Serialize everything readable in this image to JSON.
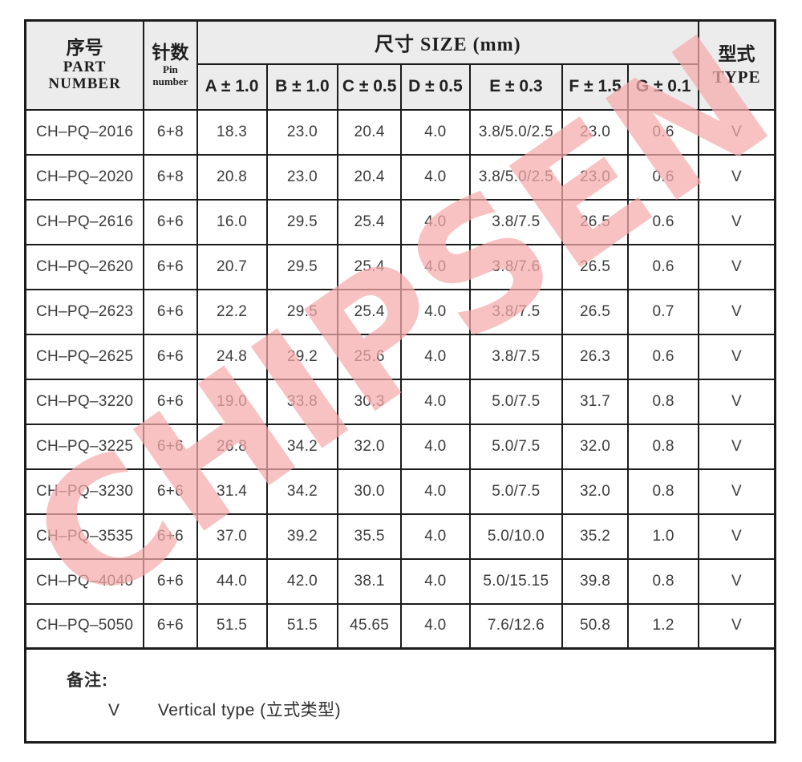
{
  "table": {
    "header": {
      "part_number_zh": "序号",
      "part_number_en1": "PART",
      "part_number_en2": "NUMBER",
      "pin_zh": "针数",
      "pin_en1": "Pin",
      "pin_en2": "number",
      "size_title": "尺寸 SIZE (mm)",
      "dim_cols": [
        "A ± 1.0",
        "B ± 1.0",
        "C ± 0.5",
        "D ± 0.5",
        "E ± 0.3",
        "F ± 1.5",
        "G ± 0.1"
      ],
      "type_zh": "型式",
      "type_en": "TYPE"
    },
    "col_names": [
      "part-number",
      "pin-number",
      "dim-a",
      "dim-b",
      "dim-c",
      "dim-d",
      "dim-e",
      "dim-f",
      "dim-g",
      "type"
    ],
    "rows": [
      [
        "CH–PQ–2016",
        "6+8",
        "18.3",
        "23.0",
        "20.4",
        "4.0",
        "3.8/5.0/2.5",
        "23.0",
        "0.6",
        "V"
      ],
      [
        "CH–PQ–2020",
        "6+8",
        "20.8",
        "23.0",
        "20.4",
        "4.0",
        "3.8/5.0/2.5",
        "23.0",
        "0.6",
        "V"
      ],
      [
        "CH–PQ–2616",
        "6+6",
        "16.0",
        "29.5",
        "25.4",
        "4.0",
        "3.8/7.5",
        "26.5",
        "0.6",
        "V"
      ],
      [
        "CH–PQ–2620",
        "6+6",
        "20.7",
        "29.5",
        "25.4",
        "4.0",
        "3.8/7.6",
        "26.5",
        "0.6",
        "V"
      ],
      [
        "CH–PQ–2623",
        "6+6",
        "22.2",
        "29.5",
        "25.4",
        "4.0",
        "3.8/7.5",
        "26.5",
        "0.7",
        "V"
      ],
      [
        "CH–PQ–2625",
        "6+6",
        "24.8",
        "29.2",
        "25.6",
        "4.0",
        "3.8/7.5",
        "26.3",
        "0.6",
        "V"
      ],
      [
        "CH–PQ–3220",
        "6+6",
        "19.0",
        "33.8",
        "30.3",
        "4.0",
        "5.0/7.5",
        "31.7",
        "0.8",
        "V"
      ],
      [
        "CH–PQ–3225",
        "6+6",
        "26.8",
        "34.2",
        "32.0",
        "4.0",
        "5.0/7.5",
        "32.0",
        "0.8",
        "V"
      ],
      [
        "CH–PQ–3230",
        "6+6",
        "31.4",
        "34.2",
        "30.0",
        "4.0",
        "5.0/7.5",
        "32.0",
        "0.8",
        "V"
      ],
      [
        "CH–PQ–3535",
        "6+6",
        "37.0",
        "39.2",
        "35.5",
        "4.0",
        "5.0/10.0",
        "35.2",
        "1.0",
        "V"
      ],
      [
        "CH–PQ–4040",
        "6+6",
        "44.0",
        "42.0",
        "38.1",
        "4.0",
        "5.0/15.15",
        "39.8",
        "0.8",
        "V"
      ],
      [
        "CH–PQ–5050",
        "6+6",
        "51.5",
        "51.5",
        "45.65",
        "4.0",
        "7.6/12.6",
        "50.8",
        "1.2",
        "V"
      ]
    ]
  },
  "note": {
    "label": "备注:",
    "symbol": "V",
    "description": "Vertical type (立式类型)"
  },
  "watermark": {
    "text": "CHIPSEN",
    "color": "#f6aaaa"
  },
  "colors": {
    "header_bg": "#ececec",
    "border": "#1b1b1b",
    "data_text": "#3c3c3c"
  }
}
